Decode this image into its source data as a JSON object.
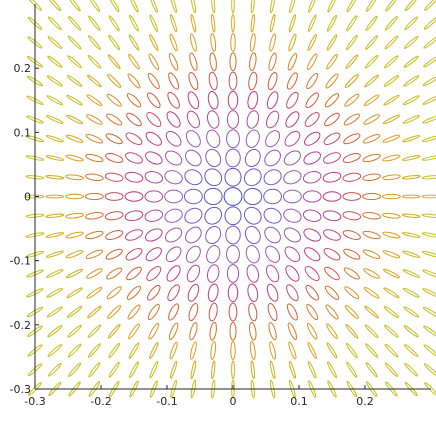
{
  "chart_data": {
    "type": "scatter",
    "title": "",
    "xlabel": "",
    "ylabel": "",
    "xlim": [
      -0.3,
      0.3
    ],
    "ylim": [
      -0.3,
      0.3
    ],
    "xticks": [
      -0.3,
      -0.2,
      -0.1,
      0,
      0.1,
      0.2
    ],
    "yticks": [
      -0.3,
      -0.2,
      -0.1,
      0,
      0.1,
      0.2
    ],
    "xtick_labels": [
      "-0.3",
      "-0.2",
      "-0.1",
      "0",
      "0.1",
      "0.2"
    ],
    "ytick_labels": [
      "-0.3",
      "-0.2",
      "-0.1",
      "0",
      "0.1",
      "0.2"
    ],
    "grid": false,
    "glyph": "hyperbolic-ellipse field: filled ellipse at each grid node, width and height proportional to the two principal values, rotated by the local principal angle",
    "grid_x": [
      -0.3,
      -0.27,
      -0.24,
      -0.21,
      -0.18,
      -0.15,
      -0.12,
      -0.09,
      -0.06,
      -0.03,
      0,
      0.03,
      0.06,
      0.09,
      0.12,
      0.15,
      0.18,
      0.21,
      0.24,
      0.27,
      0.3
    ],
    "grid_y": [
      -0.3,
      -0.27,
      -0.24,
      -0.21,
      -0.18,
      -0.15,
      -0.12,
      -0.09,
      -0.06,
      -0.03,
      0,
      0.03,
      0.06,
      0.09,
      0.12,
      0.15,
      0.18,
      0.21,
      0.24,
      0.27,
      0.3
    ],
    "colormap": [
      "#3b4cc0",
      "#6a5acd",
      "#9b59b6",
      "#c03a8a",
      "#d65f2a",
      "#e0a020",
      "#c8c020"
    ],
    "color_value_range": [
      0,
      0.3
    ]
  }
}
